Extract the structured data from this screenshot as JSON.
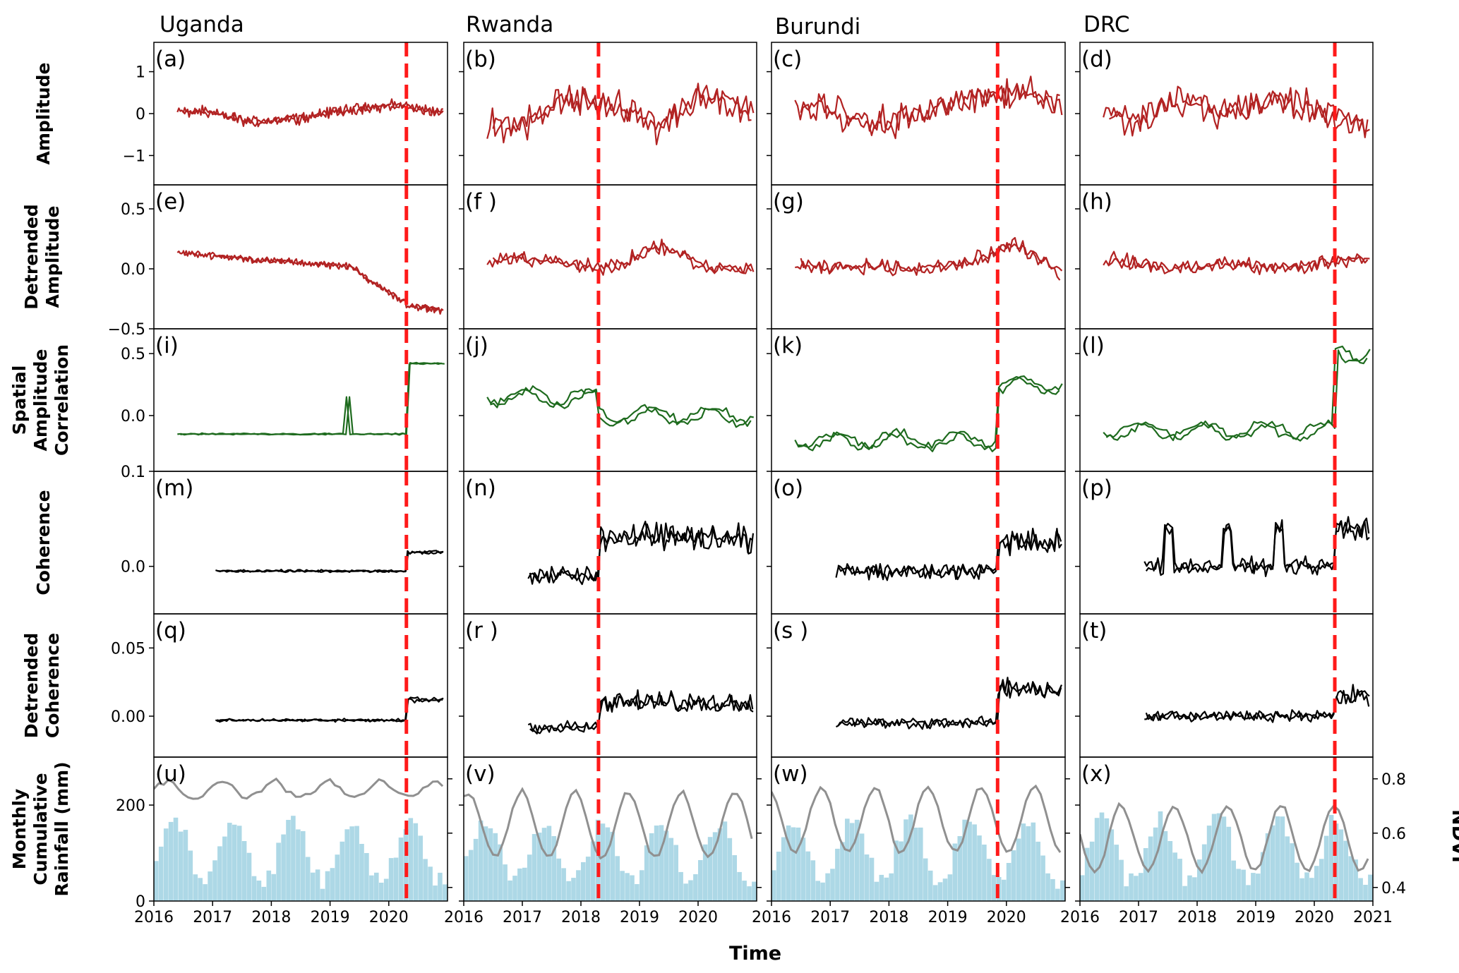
{
  "figure": {
    "x_axis_label": "Time",
    "right_axis_label": "NDVI"
  },
  "columns": [
    "Uganda",
    "Rwanda",
    "Burundi",
    "DRC"
  ],
  "row_labels": [
    [
      "Amplitude"
    ],
    [
      "Detrended",
      "Amplitude"
    ],
    [
      "Spatial",
      "Amplitude",
      "Correlation"
    ],
    [
      "Coherence"
    ],
    [
      "Detrended",
      "Coherence"
    ],
    [
      "Monthly",
      "Cumulative",
      "Rainfall (mm)"
    ]
  ],
  "panel_labels": [
    [
      "(a)",
      "(b)",
      "(c)",
      "(d)"
    ],
    [
      "(e)",
      "(f )",
      "(g)",
      "(h)"
    ],
    [
      "(i)",
      "(j)",
      "(k)",
      "(l)"
    ],
    [
      "(m)",
      "(n)",
      "(o)",
      "(p)"
    ],
    [
      "(q)",
      "(r )",
      "(s )",
      "(t)"
    ],
    [
      "(u)",
      "(v)",
      "(w)",
      "(x)"
    ]
  ],
  "colors": {
    "amplitude": "#b22222",
    "correlation": "#1e6b1e",
    "coherence": "#000000",
    "rainfall_bars": "#add8e6",
    "ndvi": "#909090",
    "event_line": "#ff1a1a"
  },
  "chart_data": {
    "type": "line",
    "x_ticks": [
      "2016",
      "2017",
      "2018",
      "2019",
      "2020"
    ],
    "x_ticks_last_column": [
      "2016",
      "2017",
      "2018",
      "2019",
      "2020",
      "2021"
    ],
    "x_range": [
      2016.0,
      2021.0
    ],
    "event_year": [
      2020.3,
      2018.3,
      2019.85,
      2020.35
    ],
    "rows": [
      {
        "name": "Amplitude",
        "ylim": [
          -1.7,
          1.7
        ],
        "yticks": [
          1,
          0,
          -1
        ],
        "ytick_labels": [
          "1",
          "0",
          "−1"
        ]
      },
      {
        "name": "Detrended Amplitude",
        "ylim": [
          -0.5,
          0.7
        ],
        "yticks": [
          0.5,
          0.0,
          -0.5
        ],
        "ytick_labels": [
          "0.5",
          "0.0",
          "−0.5"
        ]
      },
      {
        "name": "Spatial Amplitude Correlation",
        "ylim": [
          -0.45,
          0.7
        ],
        "yticks": [
          0.5,
          0.0
        ],
        "ytick_labels": [
          "0.5",
          "0.0"
        ]
      },
      {
        "name": "Coherence",
        "ylim": [
          -0.05,
          0.1
        ],
        "yticks": [
          0.1,
          0.0
        ],
        "ytick_labels": [
          "0.1",
          "0.0"
        ]
      },
      {
        "name": "Detrended Coherence",
        "ylim": [
          -0.03,
          0.075
        ],
        "yticks": [
          0.05,
          0.0
        ],
        "ytick_labels": [
          "0.05",
          "0.00"
        ]
      },
      {
        "name": "Monthly Cumulative Rainfall (mm)",
        "ylim": [
          0,
          300
        ],
        "yticks": [
          200,
          0
        ],
        "ytick_labels": [
          "200",
          "0"
        ],
        "ndvi_ylim": [
          0.35,
          0.88
        ],
        "ndvi_yticks": [
          0.8,
          0.6,
          0.4
        ],
        "ndvi_ytick_labels": [
          "0.8",
          "0.6",
          "0.4"
        ]
      }
    ],
    "approximate_series": {
      "Uganda": {
        "amplitude_level": [
          0.0,
          0.05,
          -0.2,
          -0.1,
          0.1,
          0.2,
          0.0
        ],
        "detrended_amplitude_level": [
          0.15,
          0.12,
          0.08,
          0.05,
          0.02,
          -0.25,
          -0.3
        ],
        "correlation_level_before": -0.15,
        "correlation_level_after": 0.42,
        "coherence_before": -0.005,
        "coherence_after": 0.015,
        "detrended_coherence_before": -0.003,
        "detrended_coherence_after": 0.012,
        "ndvi_level": 0.76
      },
      "Rwanda": {
        "amplitude_level": [
          0.0,
          -0.4,
          0.4,
          0.2,
          -0.3,
          0.5,
          0.0
        ],
        "detrended_amplitude_level": [
          0.0,
          0.1,
          0.05,
          0.0,
          0.2,
          0.0,
          0.0
        ],
        "correlation_level_before": 0.15,
        "correlation_level_after": 0.0,
        "coherence_before": -0.01,
        "coherence_after": 0.03,
        "detrended_coherence_before": -0.008,
        "detrended_coherence_after": 0.01,
        "ndvi_level": 0.63
      },
      "Burundi": {
        "amplitude_level": [
          0.0,
          0.2,
          -0.3,
          0.0,
          0.3,
          0.5,
          0.2
        ],
        "detrended_amplitude_level": [
          0.05,
          0.0,
          0.02,
          0.0,
          0.05,
          0.2,
          -0.05
        ],
        "correlation_level_before": -0.2,
        "correlation_level_after": 0.25,
        "coherence_before": -0.005,
        "coherence_after": 0.025,
        "detrended_coherence_before": -0.005,
        "detrended_coherence_after": 0.02,
        "ndvi_level": 0.65
      },
      "DRC": {
        "amplitude_level": [
          0.2,
          -0.2,
          0.3,
          0.0,
          0.4,
          0.0,
          -0.3
        ],
        "detrended_amplitude_level": [
          0.1,
          0.05,
          0.0,
          0.05,
          0.0,
          0.05,
          0.1
        ],
        "correlation_level_before": -0.12,
        "correlation_level_after": 0.5,
        "coherence_before": 0.0,
        "coherence_after": 0.04,
        "detrended_coherence_before": 0.0,
        "detrended_coherence_after": 0.015,
        "ndvi_level": 0.58
      }
    }
  }
}
